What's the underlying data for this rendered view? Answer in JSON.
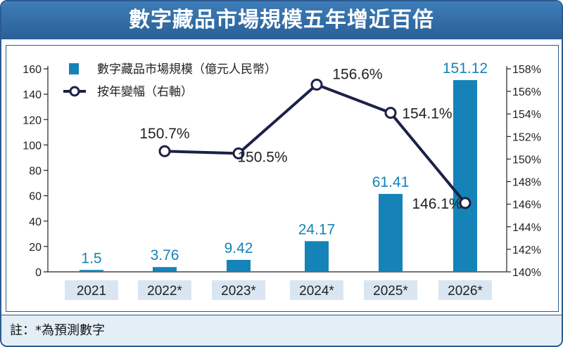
{
  "title": "數字藏品市場規模五年增近百倍",
  "note": "註：*為預測數字",
  "colors": {
    "bar": "#1583b8",
    "line": "#1b2147",
    "title_bg": "#2f6aa3",
    "category_bg": "#d9e6f2",
    "note_bg": "#e3eef7"
  },
  "chart_data": {
    "type": "bar",
    "categories": [
      "2021",
      "2022*",
      "2023*",
      "2024*",
      "2025*",
      "2026*"
    ],
    "series": [
      {
        "name": "數字藏品市場規模（億元人民幣）",
        "type": "bar",
        "axis": "left",
        "values": [
          1.5,
          3.76,
          9.42,
          24.17,
          61.41,
          151.12
        ],
        "labels": [
          "1.5",
          "3.76",
          "9.42",
          "24.17",
          "61.41",
          "151.12"
        ]
      },
      {
        "name": "按年變幅（右軸）",
        "type": "line",
        "axis": "right",
        "values": [
          null,
          150.7,
          150.5,
          156.6,
          154.1,
          146.1
        ],
        "labels": [
          "",
          "150.7%",
          "150.5%",
          "156.6%",
          "154.1%",
          "146.1%"
        ]
      }
    ],
    "y_left": {
      "min": 0,
      "max": 160,
      "ticks": [
        "0",
        "20",
        "40",
        "60",
        "80",
        "100",
        "120",
        "140",
        "160"
      ]
    },
    "y_right": {
      "min": 140,
      "max": 158,
      "ticks": [
        "140%",
        "142%",
        "144%",
        "146%",
        "148%",
        "150%",
        "152%",
        "154%",
        "156%",
        "158%"
      ]
    },
    "legend_position": "top-left",
    "grid": false
  }
}
